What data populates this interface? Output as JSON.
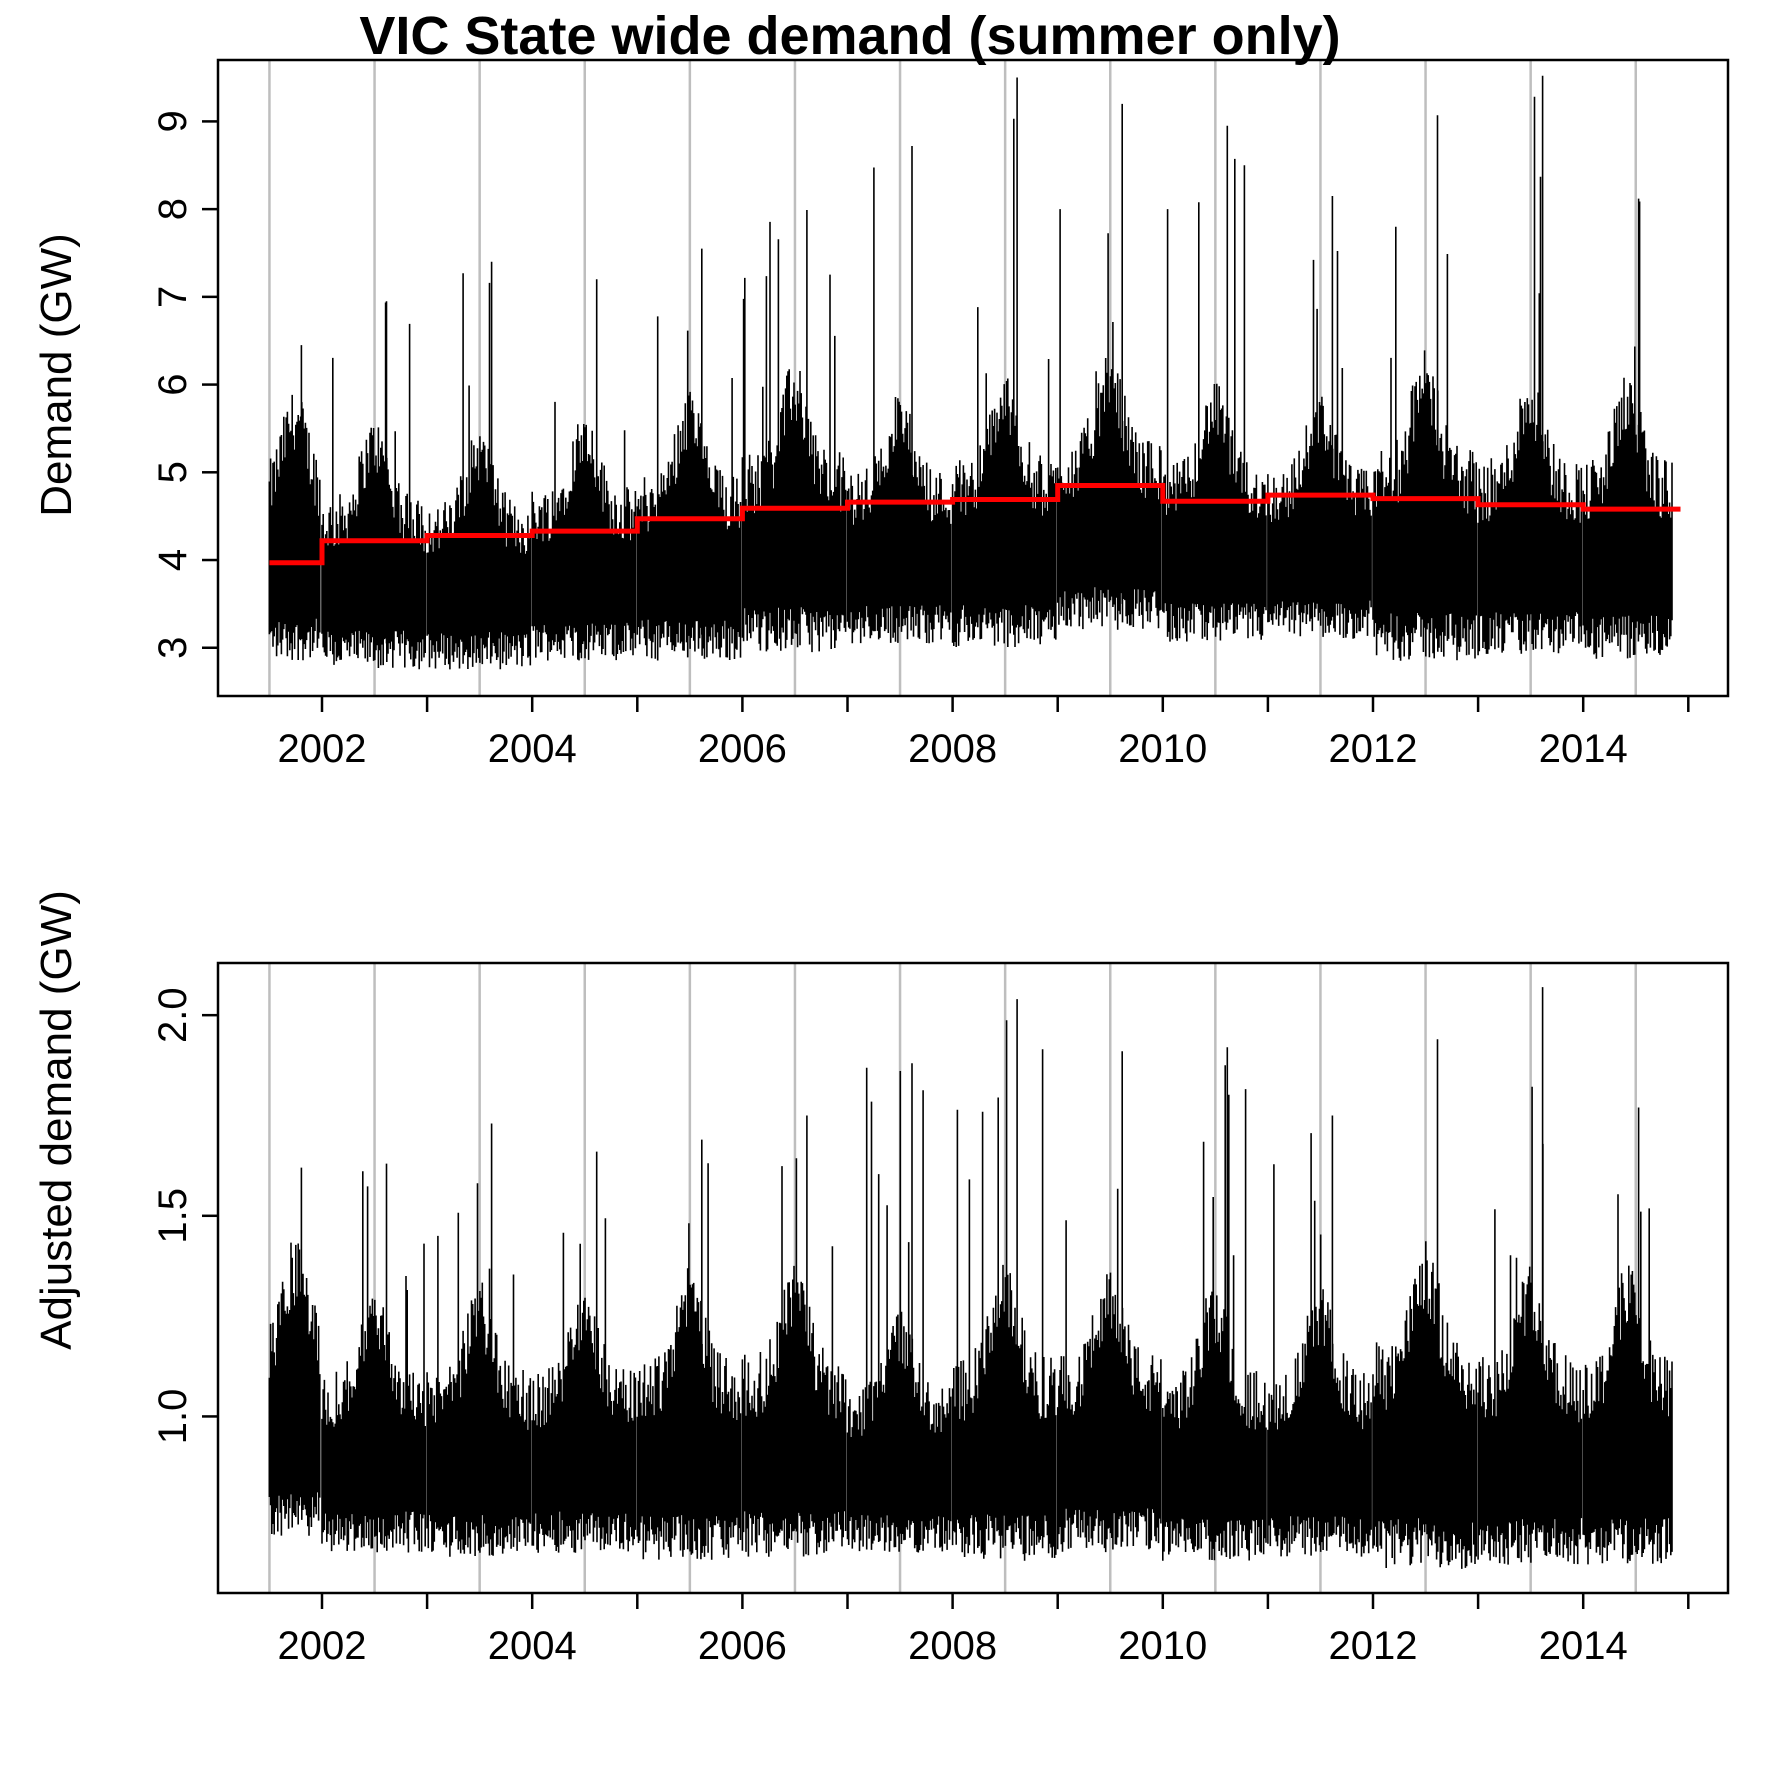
{
  "chart_data": {
    "title": "VIC State wide demand (summer only)",
    "panels": [
      {
        "type": "line",
        "ylabel": "Demand (GW)",
        "xlabel": "",
        "xlim": [
          2001.3,
          2015.0
        ],
        "ylim": [
          2.45,
          9.7
        ],
        "x_ticks": [
          "2002",
          "2004",
          "2006",
          "2008",
          "2010",
          "2012",
          "2014"
        ],
        "y_ticks": [
          "3",
          "4",
          "5",
          "6",
          "7",
          "8",
          "9"
        ],
        "grid": "vertical lines at mid-year season boundaries",
        "seasons": [
          {
            "start": 2001.5,
            "end": 2001.99,
            "low": 2.85,
            "high_typ": 5.6,
            "peak": 6.45,
            "median": 3.97
          },
          {
            "start": 2002.0,
            "end": 2002.99,
            "low": 2.75,
            "high_typ": 5.3,
            "peak": 6.95,
            "median": 4.22
          },
          {
            "start": 2003.0,
            "end": 2003.99,
            "low": 2.75,
            "high_typ": 5.2,
            "peak": 7.4,
            "median": 4.28
          },
          {
            "start": 2004.0,
            "end": 2004.99,
            "low": 2.85,
            "high_typ": 5.4,
            "peak": 7.2,
            "median": 4.33
          },
          {
            "start": 2005.0,
            "end": 2005.99,
            "low": 2.85,
            "high_typ": 5.6,
            "peak": 7.55,
            "median": 4.47
          },
          {
            "start": 2006.0,
            "end": 2006.99,
            "low": 2.95,
            "high_typ": 5.9,
            "peak": 7.99,
            "median": 4.59
          },
          {
            "start": 2007.0,
            "end": 2007.99,
            "low": 3.05,
            "high_typ": 5.6,
            "peak": 8.72,
            "median": 4.66
          },
          {
            "start": 2008.0,
            "end": 2008.99,
            "low": 3.0,
            "high_typ": 5.8,
            "peak": 9.5,
            "median": 4.69
          },
          {
            "start": 2009.0,
            "end": 2009.99,
            "low": 3.2,
            "high_typ": 6.0,
            "peak": 9.2,
            "median": 4.85
          },
          {
            "start": 2010.0,
            "end": 2010.99,
            "low": 3.05,
            "high_typ": 5.7,
            "peak": 8.95,
            "median": 4.67
          },
          {
            "start": 2011.0,
            "end": 2011.99,
            "low": 3.1,
            "high_typ": 5.6,
            "peak": 8.15,
            "median": 4.74
          },
          {
            "start": 2012.0,
            "end": 2012.99,
            "low": 2.85,
            "high_typ": 6.0,
            "peak": 9.07,
            "median": 4.7
          },
          {
            "start": 2013.0,
            "end": 2013.99,
            "low": 2.9,
            "high_typ": 5.8,
            "peak": 9.52,
            "median": 4.63
          },
          {
            "start": 2014.0,
            "end": 2014.85,
            "low": 2.85,
            "high_typ": 5.8,
            "peak": 8.12,
            "median": 4.58
          }
        ],
        "series": [
          {
            "style": "black time series, half-hourly demand",
            "color": "#000000"
          },
          {
            "style": "red step line, seasonal median",
            "color": "#ff0000"
          }
        ]
      },
      {
        "type": "line",
        "ylabel": "Adjusted demand (GW)",
        "xlabel": "",
        "xlim": [
          2001.3,
          2015.0
        ],
        "ylim": [
          0.56,
          2.13
        ],
        "x_ticks": [
          "2002",
          "2004",
          "2006",
          "2008",
          "2010",
          "2012",
          "2014"
        ],
        "y_ticks": [
          "1.0",
          "1.5",
          "2.0"
        ],
        "grid": "vertical lines at mid-year season boundaries",
        "seasons": [
          {
            "start": 2001.5,
            "end": 2001.99,
            "low": 0.7,
            "high_typ": 1.35,
            "peak": 1.62
          },
          {
            "start": 2002.0,
            "end": 2002.99,
            "low": 0.66,
            "high_typ": 1.25,
            "peak": 1.63
          },
          {
            "start": 2003.0,
            "end": 2003.99,
            "low": 0.65,
            "high_typ": 1.25,
            "peak": 1.73
          },
          {
            "start": 2004.0,
            "end": 2004.99,
            "low": 0.66,
            "high_typ": 1.25,
            "peak": 1.66
          },
          {
            "start": 2005.0,
            "end": 2005.99,
            "low": 0.64,
            "high_typ": 1.3,
            "peak": 1.69
          },
          {
            "start": 2006.0,
            "end": 2006.99,
            "low": 0.65,
            "high_typ": 1.3,
            "peak": 1.75
          },
          {
            "start": 2007.0,
            "end": 2007.99,
            "low": 0.66,
            "high_typ": 1.2,
            "peak": 1.88
          },
          {
            "start": 2008.0,
            "end": 2008.99,
            "low": 0.64,
            "high_typ": 1.3,
            "peak": 2.04
          },
          {
            "start": 2009.0,
            "end": 2009.99,
            "low": 0.66,
            "high_typ": 1.3,
            "peak": 1.91
          },
          {
            "start": 2010.0,
            "end": 2010.99,
            "low": 0.64,
            "high_typ": 1.25,
            "peak": 1.92
          },
          {
            "start": 2011.0,
            "end": 2011.99,
            "low": 0.65,
            "high_typ": 1.25,
            "peak": 1.75
          },
          {
            "start": 2012.0,
            "end": 2012.99,
            "low": 0.62,
            "high_typ": 1.35,
            "peak": 1.94
          },
          {
            "start": 2013.0,
            "end": 2013.99,
            "low": 0.63,
            "high_typ": 1.3,
            "peak": 2.07
          },
          {
            "start": 2014.0,
            "end": 2014.85,
            "low": 0.63,
            "high_typ": 1.3,
            "peak": 1.77
          }
        ],
        "series": [
          {
            "style": "black time series, adjusted demand",
            "color": "#000000"
          }
        ]
      }
    ]
  }
}
